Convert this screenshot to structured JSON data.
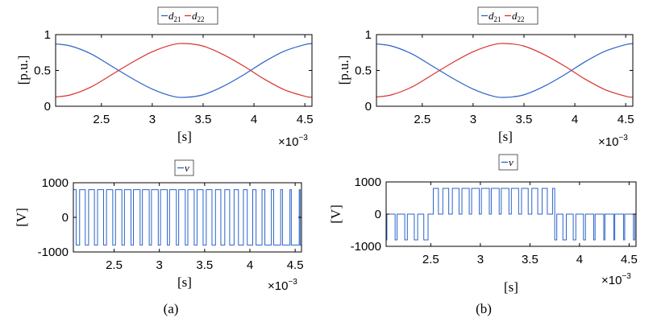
{
  "chart_data": [
    {
      "panel": "a-top",
      "type": "line",
      "xlim": [
        0.00205,
        0.00457
      ],
      "ylim": [
        0,
        1
      ],
      "xticks": [
        "2.5",
        "3",
        "3.5",
        "4",
        "4.5"
      ],
      "xtick_values": [
        0.0025,
        0.003,
        0.0035,
        0.004,
        0.0045
      ],
      "yticks": [
        "0",
        "0.5",
        "1"
      ],
      "ytick_values": [
        0,
        0.5,
        1
      ],
      "xlabel": "[s]",
      "ylabel": "[p.u.]",
      "x_exponent": "×10⁻³",
      "grid": false,
      "legend_placement": "top-center",
      "series": [
        {
          "name": "d21",
          "color": "#2b63c9",
          "x": [
            0.00205,
            0.0022,
            0.0024,
            0.0026,
            0.0028,
            0.003,
            0.0032,
            0.00333,
            0.0035,
            0.0037,
            0.0039,
            0.0041,
            0.0043,
            0.0045,
            0.00457
          ],
          "y": [
            0.87,
            0.84,
            0.73,
            0.56,
            0.39,
            0.24,
            0.14,
            0.125,
            0.16,
            0.28,
            0.44,
            0.62,
            0.77,
            0.86,
            0.875
          ]
        },
        {
          "name": "d22",
          "color": "#d9342b",
          "x": [
            0.00205,
            0.0022,
            0.0024,
            0.0026,
            0.0028,
            0.003,
            0.0032,
            0.00333,
            0.0035,
            0.0037,
            0.0039,
            0.0041,
            0.0043,
            0.0045,
            0.00457
          ],
          "y": [
            0.13,
            0.16,
            0.27,
            0.44,
            0.61,
            0.76,
            0.86,
            0.875,
            0.84,
            0.72,
            0.56,
            0.38,
            0.23,
            0.14,
            0.125
          ]
        }
      ]
    },
    {
      "panel": "a-bottom",
      "type": "line",
      "xlim": [
        0.00205,
        0.00457
      ],
      "ylim": [
        -1000,
        1000
      ],
      "xticks": [
        "2.5",
        "3",
        "3.5",
        "4",
        "4.5"
      ],
      "xtick_values": [
        0.0025,
        0.003,
        0.0035,
        0.004,
        0.0045
      ],
      "yticks": [
        "1000",
        "0",
        "-1000"
      ],
      "ytick_values": [
        1000,
        0,
        -1000
      ],
      "xlabel": "[s]",
      "ylabel": "[V]",
      "x_exponent": "×10⁻³",
      "grid": false,
      "legend_placement": "top-center",
      "waveform": "two-level PWM",
      "levels": [
        -800,
        800
      ],
      "series": [
        {
          "name": "v",
          "color": "#2b63c9"
        }
      ]
    },
    {
      "panel": "b-top",
      "type": "line",
      "xlim": [
        0.00205,
        0.00457
      ],
      "ylim": [
        0,
        1
      ],
      "xticks": [
        "2.5",
        "3",
        "3.5",
        "4",
        "4.5"
      ],
      "xtick_values": [
        0.0025,
        0.003,
        0.0035,
        0.004,
        0.0045
      ],
      "yticks": [
        "0",
        "0.5",
        "1"
      ],
      "ytick_values": [
        0,
        0.5,
        1
      ],
      "xlabel": "[s]",
      "ylabel": "[p.u.]",
      "x_exponent": "×10⁻³",
      "grid": false,
      "legend_placement": "top-center",
      "series": [
        {
          "name": "d21",
          "color": "#2b63c9",
          "x": [
            0.00205,
            0.0022,
            0.0024,
            0.0026,
            0.0028,
            0.003,
            0.0032,
            0.00333,
            0.0035,
            0.0037,
            0.0039,
            0.0041,
            0.0043,
            0.0045,
            0.00457
          ],
          "y": [
            0.87,
            0.84,
            0.73,
            0.56,
            0.39,
            0.24,
            0.14,
            0.125,
            0.16,
            0.28,
            0.44,
            0.62,
            0.77,
            0.86,
            0.875
          ]
        },
        {
          "name": "d22",
          "color": "#d9342b",
          "x": [
            0.00205,
            0.0022,
            0.0024,
            0.0026,
            0.0028,
            0.003,
            0.0032,
            0.00333,
            0.0035,
            0.0037,
            0.0039,
            0.0041,
            0.0043,
            0.0045,
            0.00457
          ],
          "y": [
            0.13,
            0.16,
            0.27,
            0.44,
            0.61,
            0.76,
            0.86,
            0.875,
            0.84,
            0.72,
            0.56,
            0.38,
            0.23,
            0.14,
            0.125
          ]
        }
      ]
    },
    {
      "panel": "b-bottom",
      "type": "line",
      "xlim": [
        0.00205,
        0.00457
      ],
      "ylim": [
        -1000,
        1000
      ],
      "xticks": [
        "2.5",
        "3",
        "3.5",
        "4",
        "4.5"
      ],
      "xtick_values": [
        0.0025,
        0.003,
        0.0035,
        0.004,
        0.0045
      ],
      "yticks": [
        "1000",
        "0",
        "-1000"
      ],
      "ytick_values": [
        1000,
        0,
        -1000
      ],
      "xlabel": "[s]",
      "ylabel": "[V]",
      "x_exponent": "×10⁻³",
      "grid": false,
      "legend_placement": "top-center",
      "waveform": "three-level PWM",
      "levels": [
        -800,
        0,
        800
      ],
      "level_switch_times": [
        0.0025,
        0.00375
      ],
      "series": [
        {
          "name": "v",
          "color": "#2b63c9"
        }
      ]
    }
  ],
  "legends": {
    "a_top": {
      "d21_base": "d",
      "d21_sub": "21",
      "d22_base": "d",
      "d22_sub": "22"
    },
    "a_bottom": {
      "v": "v"
    },
    "b_top": {
      "d21_base": "d",
      "d21_sub": "21",
      "d22_base": "d",
      "d22_sub": "22"
    },
    "b_bottom": {
      "v": "v"
    }
  },
  "exponent": {
    "base": "×10",
    "power": "−3"
  },
  "captions": {
    "a": "(a)",
    "b": "(b)"
  }
}
